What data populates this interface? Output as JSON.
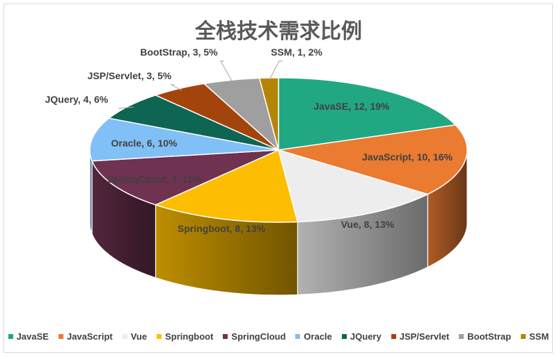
{
  "chart_data": {
    "type": "pie",
    "title": "全栈技术需求比例",
    "legend_position": "bottom",
    "slices": [
      {
        "name": "JavaSE",
        "value": 12,
        "percent": "19%",
        "label": "JavaSE, 12, 19%",
        "color": "#22a783"
      },
      {
        "name": "JavaScript",
        "value": 10,
        "percent": "16%",
        "label": "JavaScript, 10, 16%",
        "color": "#ea7b31"
      },
      {
        "name": "Vue",
        "value": 8,
        "percent": "13%",
        "label": "Vue, 8, 13%",
        "color": "#ededed"
      },
      {
        "name": "Springboot",
        "value": 8,
        "percent": "13%",
        "label": "Springboot, 8, 13%",
        "color": "#fdbd00"
      },
      {
        "name": "SpringCloud",
        "value": 7,
        "percent": "11%",
        "label": "SpringCloud, 7, 11%",
        "color": "#6f3251"
      },
      {
        "name": "Oracle",
        "value": 6,
        "percent": "10%",
        "label": "Oracle, 6, 10%",
        "color": "#81bff7"
      },
      {
        "name": "JQuery",
        "value": 4,
        "percent": "6%",
        "label": "JQuery, 4, 6%",
        "color": "#0e6551"
      },
      {
        "name": "JSP/Servlet",
        "value": 3,
        "percent": "5%",
        "label": "JSP/Servlet, 3, 5%",
        "color": "#a4440d"
      },
      {
        "name": "BootStrap",
        "value": 3,
        "percent": "5%",
        "label": "BootStrap, 3, 5%",
        "color": "#9f9f9f"
      },
      {
        "name": "SSM",
        "value": 1,
        "percent": "2%",
        "label": "SSM, 1, 2%",
        "color": "#b48504"
      }
    ]
  }
}
